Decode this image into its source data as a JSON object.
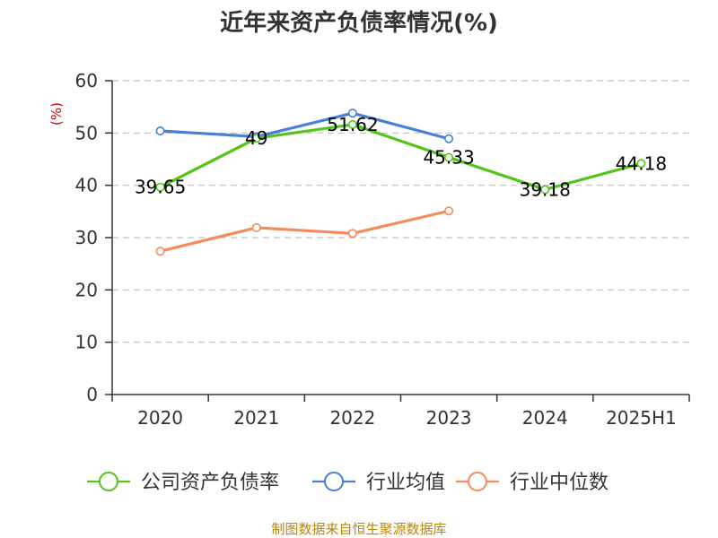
{
  "chart_data": {
    "type": "line",
    "title": "近年来资产负债率情况(%)",
    "unit_label": "(%)",
    "categories": [
      "2020",
      "2021",
      "2022",
      "2023",
      "2024",
      "2025H1"
    ],
    "ylim": [
      0,
      60
    ],
    "yticks": [
      0,
      10,
      20,
      30,
      40,
      50,
      60
    ],
    "grid": true,
    "legend_position": "bottom",
    "series": [
      {
        "name": "公司资产负债率",
        "color": "#52c41a",
        "values": [
          39.65,
          49,
          51.62,
          45.33,
          39.18,
          44.18
        ],
        "labels": [
          "39.65",
          "49",
          "51.62",
          "45.33",
          "39.18",
          "44.18"
        ]
      },
      {
        "name": "行业均值",
        "color": "#4a7fd6",
        "values": [
          50.4,
          49.3,
          53.8,
          48.9,
          null,
          null
        ]
      },
      {
        "name": "行业中位数",
        "color": "#f58a5c",
        "values": [
          27.4,
          31.9,
          30.8,
          35.1,
          null,
          null
        ]
      }
    ]
  },
  "footer": {
    "source": "制图数据来自恒生聚源数据库"
  }
}
